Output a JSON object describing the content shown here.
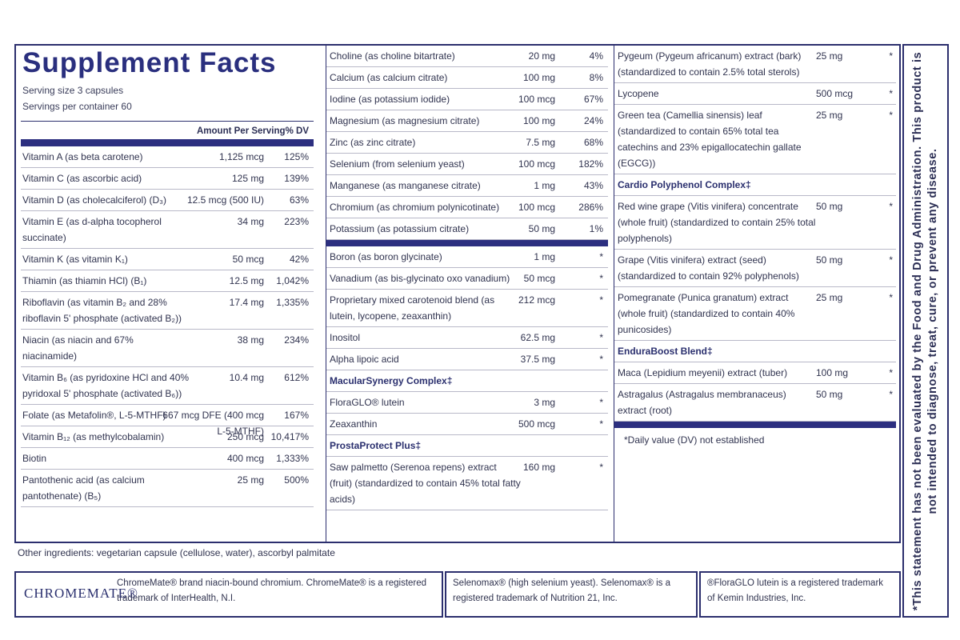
{
  "title": "Supplement Facts",
  "serving_size": "Serving size 3 capsules",
  "servings_per_container": "Servings per container 60",
  "col_amount": "Amount Per Serving",
  "col_dv": "% DV",
  "vitamins": [
    {
      "name": "Vitamin A (as beta carotene)",
      "amount": "1,125 mcg",
      "dv": "125%"
    },
    {
      "name": "Vitamin C (as ascorbic acid)",
      "amount": "125 mg",
      "dv": "139%"
    },
    {
      "name": "Vitamin D (as cholecalciferol) (D₃)",
      "amount": "12.5 mcg (500 IU)",
      "dv": "63%"
    },
    {
      "name": "Vitamin E (as d-alpha tocopherol succinate)",
      "amount": "34 mg",
      "dv": "223%"
    },
    {
      "name": "Vitamin K (as vitamin K₁)",
      "amount": "50 mcg",
      "dv": "42%"
    },
    {
      "name": "Thiamin (as thiamin HCl) (B₁)",
      "amount": "12.5 mg",
      "dv": "1,042%"
    },
    {
      "name": "Riboflavin (as vitamin B₂ and 28% riboflavin 5' phosphate (activated B₂))",
      "amount": "17.4 mg",
      "dv": "1,335%"
    },
    {
      "name": "Niacin (as niacin and 67% niacinamide)",
      "amount": "38 mg",
      "dv": "234%"
    },
    {
      "name": "Vitamin B₆ (as pyridoxine HCl and 40% pyridoxal 5' phosphate (activated B₆))",
      "amount": "10.4 mg",
      "dv": "612%"
    },
    {
      "name": "Folate (as Metafolin®, L-5-MTHF)",
      "amount": "667 mcg DFE (400 mcg L-5-MTHF)",
      "dv": "167%"
    },
    {
      "name": "Vitamin B₁₂ (as methylcobalamin)",
      "amount": "250 mcg",
      "dv": "10,417%"
    },
    {
      "name": "Biotin",
      "amount": "400 mcg",
      "dv": "1,333%"
    },
    {
      "name": "Pantothenic acid (as calcium pantothenate) (B₅)",
      "amount": "25 mg",
      "dv": "500%"
    }
  ],
  "minerals": [
    {
      "name": "Choline (as choline bitartrate)",
      "amount": "20 mg",
      "dv": "4%"
    },
    {
      "name": "Calcium (as calcium citrate)",
      "amount": "100 mg",
      "dv": "8%"
    },
    {
      "name": "Iodine (as potassium iodide)",
      "amount": "100 mcg",
      "dv": "67%"
    },
    {
      "name": "Magnesium (as magnesium citrate)",
      "amount": "100 mg",
      "dv": "24%"
    },
    {
      "name": "Zinc (as zinc citrate)",
      "amount": "7.5 mg",
      "dv": "68%"
    },
    {
      "name": "Selenium (from selenium yeast)",
      "amount": "100 mcg",
      "dv": "182%"
    },
    {
      "name": "Manganese (as manganese citrate)",
      "amount": "1 mg",
      "dv": "43%"
    },
    {
      "name": "Chromium (as chromium polynicotinate)",
      "amount": "100 mcg",
      "dv": "286%"
    },
    {
      "name": "Potassium (as potassium citrate)",
      "amount": "50 mg",
      "dv": "1%"
    }
  ],
  "others": [
    {
      "name": "Boron (as boron glycinate)",
      "amount": "1 mg",
      "dv": "*"
    },
    {
      "name": "Vanadium (as bis-glycinato oxo vanadium)",
      "amount": "50 mcg",
      "dv": "*"
    },
    {
      "name": "Proprietary mixed carotenoid blend (as lutein, lycopene, zeaxanthin)",
      "amount": "212 mcg",
      "dv": "*"
    },
    {
      "name": "Inositol",
      "amount": "62.5 mg",
      "dv": "*"
    },
    {
      "name": "Alpha lipoic acid",
      "amount": "37.5 mg",
      "dv": "*"
    }
  ],
  "macular_title": "MacularSynergy Complex‡",
  "macular": [
    {
      "name": "FloraGLO® lutein",
      "amount": "3 mg",
      "dv": "*"
    },
    {
      "name": "Zeaxanthin",
      "amount": "500 mcg",
      "dv": "*"
    }
  ],
  "prosta_title": "ProstaProtect Plus‡",
  "prosta": [
    {
      "name": "Saw palmetto (Serenoa repens) extract (fruit) (standardized to contain 45% total fatty acids)",
      "amount": "160 mg",
      "dv": "*"
    }
  ],
  "col3a": [
    {
      "name": "Pygeum (Pygeum africanum) extract (bark) (standardized to contain 2.5% total sterols)",
      "amount": "25 mg",
      "dv": "*"
    },
    {
      "name": "Lycopene",
      "amount": "500 mcg",
      "dv": "*"
    },
    {
      "name": "Green tea (Camellia sinensis) leaf (standardized to contain 65% total tea catechins and 23% epigallocatechin gallate (EGCG))",
      "amount": "25 mg",
      "dv": "*"
    }
  ],
  "cardio_title": "Cardio Polyphenol Complex‡",
  "cardio": [
    {
      "name": "Red wine grape (Vitis vinifera) concentrate (whole fruit) (standardized to contain 25% total polyphenols)",
      "amount": "50 mg",
      "dv": "*"
    },
    {
      "name": "Grape (Vitis vinifera) extract (seed) (standardized to contain 92% polyphenols)",
      "amount": "50 mg",
      "dv": "*"
    },
    {
      "name": "Pomegranate (Punica granatum) extract (whole fruit) (standardized to contain 40% punicosides)",
      "amount": "25 mg",
      "dv": "*"
    }
  ],
  "endura_title": "EnduraBoost Blend‡",
  "endura": [
    {
      "name": "Maca (Lepidium meyenii) extract (tuber)",
      "amount": "100 mg",
      "dv": "*"
    },
    {
      "name": "Astragalus (Astragalus membranaceus) extract (root)",
      "amount": "50 mg",
      "dv": "*"
    }
  ],
  "dv_note": "*Daily value (DV) not established",
  "other_ingredients": "Other ingredients: vegetarian capsule (cellulose, water), ascorbyl palmitate",
  "logo_text": "CHROMEMATE®",
  "tm_chromemate": "ChromeMate® brand niacin-bound chromium. ChromeMate® is a registered trademark of InterHealth, N.I.",
  "tm_selenomax": "Selenomax® (high selenium yeast). Selenomax® is a registered trademark of Nutrition 21, Inc.",
  "tm_floraglo": "®FloraGLO lutein is a registered trademark of Kemin Industries, Inc.",
  "fda_statement": "*This statement has not been evaluated by the Food and Drug Administration. This product is not intended to diagnose, treat, cure, or prevent any disease."
}
